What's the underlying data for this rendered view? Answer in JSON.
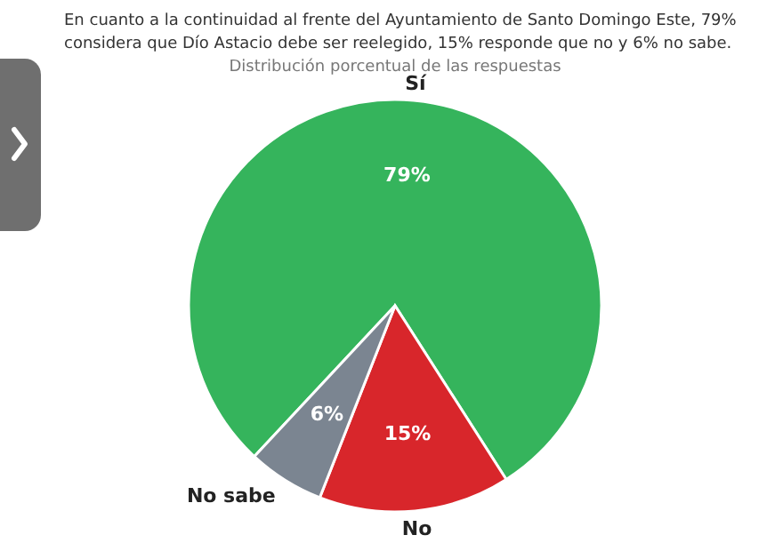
{
  "chart_data": {
    "type": "pie",
    "title": "Distribución porcentual de las respuestas",
    "annotations": [
      "En cuanto a la continuidad al frente del Ayuntamiento de Santo Domingo Este, 79% considera que Dío Astacio debe ser reelegido, 15% responde que no y 6% no sabe."
    ],
    "categories": [
      "Sí",
      "No",
      "No sabe"
    ],
    "values": [
      79,
      15,
      6
    ],
    "colors": [
      "#35b45c",
      "#d8262b",
      "#7b8591"
    ],
    "value_labels": [
      "79%",
      "15%",
      "6%"
    ]
  }
}
